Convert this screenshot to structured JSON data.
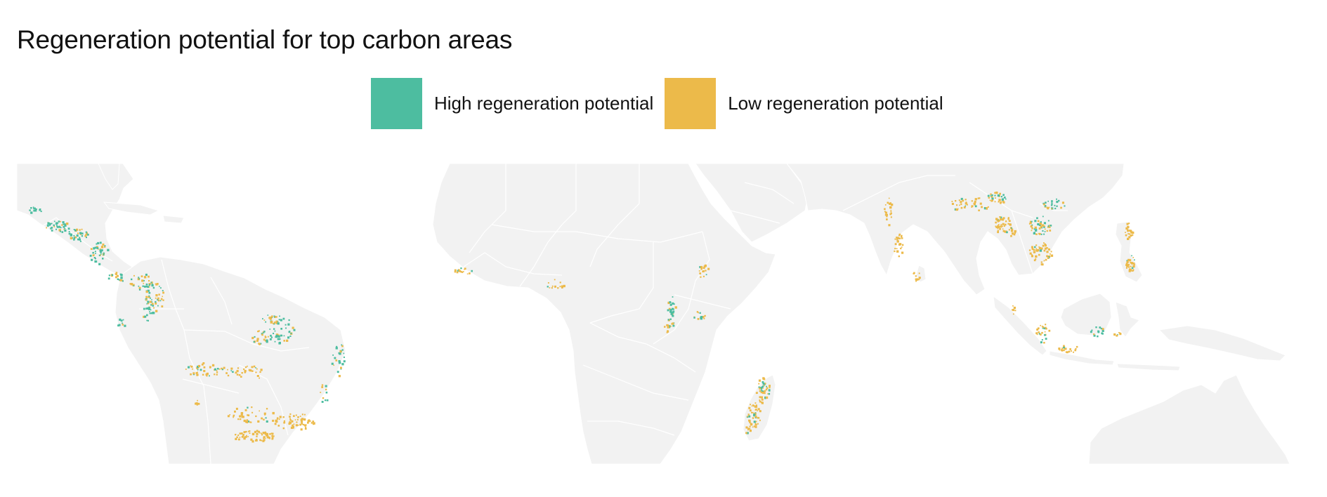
{
  "title": "Regeneration potential for top carbon areas",
  "legend": {
    "items": [
      {
        "label": "High regeneration potential",
        "color": "#4dbda0"
      },
      {
        "label": "Low regeneration potential",
        "color": "#ecba4a"
      }
    ]
  },
  "map": {
    "land_color": "#f2f2f2",
    "border_color": "#ffffff",
    "background": "#ffffff",
    "regions_shown": [
      "Central America",
      "South America",
      "Africa",
      "Madagascar",
      "South Asia",
      "Southeast Asia",
      "Australia"
    ]
  }
}
